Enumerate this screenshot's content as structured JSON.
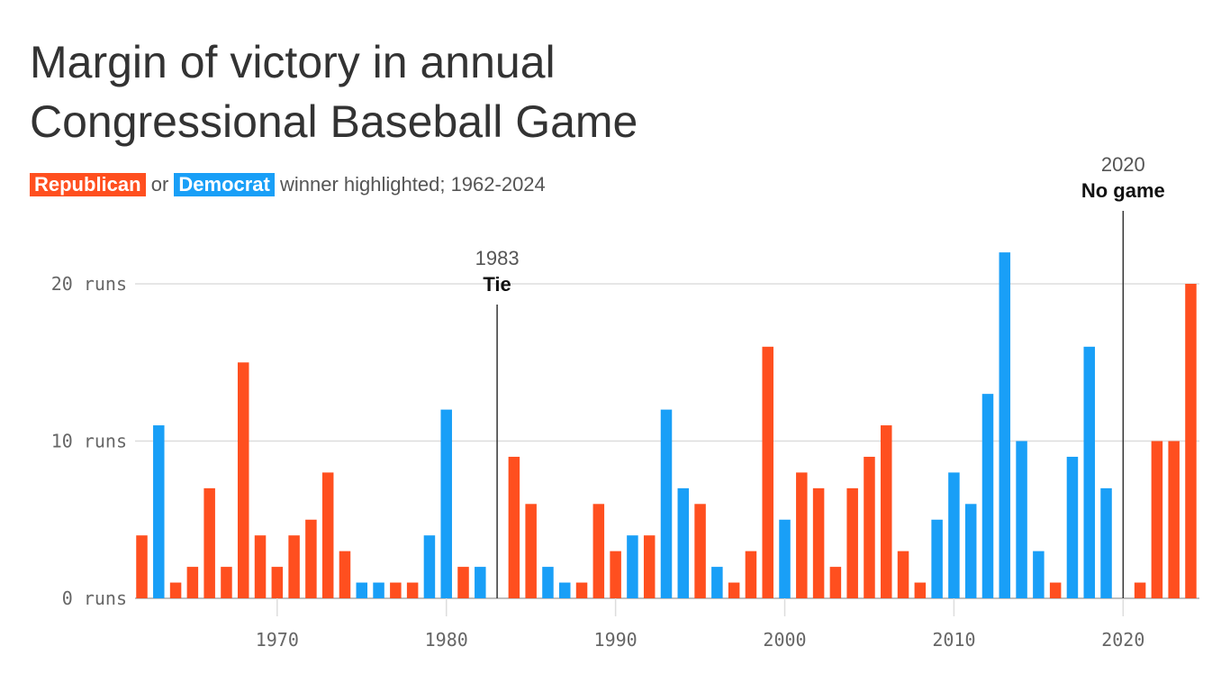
{
  "title_line1": "Margin of victory in annual",
  "title_line2": "Congressional Baseball Game",
  "subtitle": {
    "republican": "Republican",
    "or": "or",
    "democrat": "Democrat",
    "rest": "winner highlighted; 1962-2024"
  },
  "colors": {
    "republican": "#ff4f1f",
    "democrat": "#199ff7",
    "grid": "#dddddd",
    "axis": "#aaaaaa"
  },
  "chart_data": {
    "type": "bar",
    "title": "Margin of victory in annual Congressional Baseball Game",
    "subtitle": "Republican or Democrat winner highlighted; 1962-2024",
    "xlabel": "",
    "ylabel": "",
    "ylim": [
      0,
      22
    ],
    "x_range": [
      1962,
      2024
    ],
    "grid": true,
    "y_ticks": [
      {
        "value": 0,
        "label": "0 runs"
      },
      {
        "value": 10,
        "label": "10 runs"
      },
      {
        "value": 20,
        "label": "20 runs"
      }
    ],
    "x_ticks": [
      1970,
      1980,
      1990,
      2000,
      2010,
      2020
    ],
    "bars": [
      {
        "year": 1962,
        "value": 4,
        "winner": "R"
      },
      {
        "year": 1963,
        "value": 11,
        "winner": "D"
      },
      {
        "year": 1964,
        "value": 1,
        "winner": "R"
      },
      {
        "year": 1965,
        "value": 2,
        "winner": "R"
      },
      {
        "year": 1966,
        "value": 7,
        "winner": "R"
      },
      {
        "year": 1967,
        "value": 2,
        "winner": "R"
      },
      {
        "year": 1968,
        "value": 15,
        "winner": "R"
      },
      {
        "year": 1969,
        "value": 4,
        "winner": "R"
      },
      {
        "year": 1970,
        "value": 2,
        "winner": "R"
      },
      {
        "year": 1971,
        "value": 4,
        "winner": "R"
      },
      {
        "year": 1972,
        "value": 5,
        "winner": "R"
      },
      {
        "year": 1973,
        "value": 8,
        "winner": "R"
      },
      {
        "year": 1974,
        "value": 3,
        "winner": "R"
      },
      {
        "year": 1975,
        "value": 1,
        "winner": "D"
      },
      {
        "year": 1976,
        "value": 1,
        "winner": "D"
      },
      {
        "year": 1977,
        "value": 1,
        "winner": "R"
      },
      {
        "year": 1978,
        "value": 1,
        "winner": "R"
      },
      {
        "year": 1979,
        "value": 4,
        "winner": "D"
      },
      {
        "year": 1980,
        "value": 12,
        "winner": "D"
      },
      {
        "year": 1981,
        "value": 2,
        "winner": "R"
      },
      {
        "year": 1982,
        "value": 2,
        "winner": "D"
      },
      {
        "year": 1984,
        "value": 9,
        "winner": "R"
      },
      {
        "year": 1985,
        "value": 6,
        "winner": "R"
      },
      {
        "year": 1986,
        "value": 2,
        "winner": "D"
      },
      {
        "year": 1987,
        "value": 1,
        "winner": "D"
      },
      {
        "year": 1988,
        "value": 1,
        "winner": "R"
      },
      {
        "year": 1989,
        "value": 6,
        "winner": "R"
      },
      {
        "year": 1990,
        "value": 3,
        "winner": "R"
      },
      {
        "year": 1991,
        "value": 4,
        "winner": "D"
      },
      {
        "year": 1992,
        "value": 4,
        "winner": "R"
      },
      {
        "year": 1993,
        "value": 12,
        "winner": "D"
      },
      {
        "year": 1994,
        "value": 7,
        "winner": "D"
      },
      {
        "year": 1995,
        "value": 6,
        "winner": "R"
      },
      {
        "year": 1996,
        "value": 2,
        "winner": "D"
      },
      {
        "year": 1997,
        "value": 1,
        "winner": "R"
      },
      {
        "year": 1998,
        "value": 3,
        "winner": "R"
      },
      {
        "year": 1999,
        "value": 16,
        "winner": "R"
      },
      {
        "year": 2000,
        "value": 5,
        "winner": "D"
      },
      {
        "year": 2001,
        "value": 8,
        "winner": "R"
      },
      {
        "year": 2002,
        "value": 7,
        "winner": "R"
      },
      {
        "year": 2003,
        "value": 2,
        "winner": "R"
      },
      {
        "year": 2004,
        "value": 7,
        "winner": "R"
      },
      {
        "year": 2005,
        "value": 9,
        "winner": "R"
      },
      {
        "year": 2006,
        "value": 11,
        "winner": "R"
      },
      {
        "year": 2007,
        "value": 3,
        "winner": "R"
      },
      {
        "year": 2008,
        "value": 1,
        "winner": "R"
      },
      {
        "year": 2009,
        "value": 5,
        "winner": "D"
      },
      {
        "year": 2010,
        "value": 8,
        "winner": "D"
      },
      {
        "year": 2011,
        "value": 6,
        "winner": "D"
      },
      {
        "year": 2012,
        "value": 13,
        "winner": "D"
      },
      {
        "year": 2013,
        "value": 22,
        "winner": "D"
      },
      {
        "year": 2014,
        "value": 10,
        "winner": "D"
      },
      {
        "year": 2015,
        "value": 3,
        "winner": "D"
      },
      {
        "year": 2016,
        "value": 1,
        "winner": "R"
      },
      {
        "year": 2017,
        "value": 9,
        "winner": "D"
      },
      {
        "year": 2018,
        "value": 16,
        "winner": "D"
      },
      {
        "year": 2019,
        "value": 7,
        "winner": "D"
      },
      {
        "year": 2021,
        "value": 1,
        "winner": "R"
      },
      {
        "year": 2022,
        "value": 10,
        "winner": "R"
      },
      {
        "year": 2023,
        "value": 10,
        "winner": "R"
      },
      {
        "year": 2024,
        "value": 20,
        "winner": "R"
      }
    ],
    "annotations": [
      {
        "year": 1983,
        "label_year": "1983",
        "note": "Tie"
      },
      {
        "year": 2020,
        "label_year": "2020",
        "note": "No game"
      }
    ]
  }
}
